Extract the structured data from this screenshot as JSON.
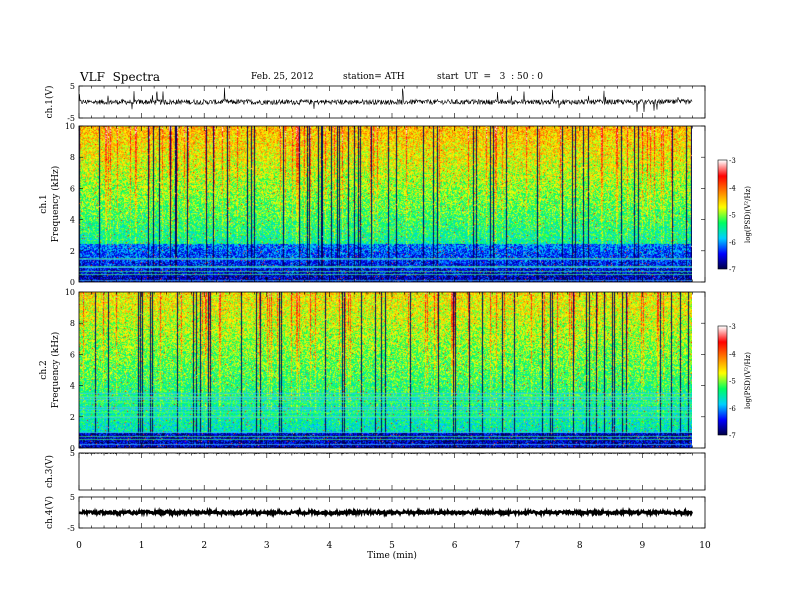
{
  "header": {
    "title": "VLF  Spectra",
    "date": "Feb. 25, 2012",
    "station": "station= ATH",
    "start": "start  UT  =   3  : 50 : 0"
  },
  "chart_data": [
    {
      "type": "line",
      "panel": "waveform-ch1",
      "ylabel": "ch.1(V)",
      "ylim": [
        -5,
        5
      ],
      "yticks": [
        "5",
        "-5"
      ],
      "x_range_min": [
        0,
        9.8
      ],
      "baseline": 0,
      "description_level": "noisy signal with impulsive spikes"
    },
    {
      "type": "heatmap",
      "panel": "spectrogram-ch1",
      "ylabel_lines": [
        "ch.1",
        "Frequency  (kHz)"
      ],
      "ylim": [
        0,
        10
      ],
      "yticks": [
        "0",
        "2",
        "4",
        "6",
        "8",
        "10"
      ],
      "x_range_min": [
        0,
        9.8
      ],
      "colorbar": {
        "label": "log(PSD)(V²/Hz)",
        "range": [
          -7,
          -3
        ],
        "ticks": [
          "-3",
          "-4",
          "-5",
          "-6",
          "-7"
        ],
        "colormap": [
          "#000040",
          "#0000ff",
          "#00d0ff",
          "#00ff60",
          "#ffff00",
          "#ff8000",
          "#ff0000",
          "#ffffff"
        ]
      }
    },
    {
      "type": "heatmap",
      "panel": "spectrogram-ch2",
      "ylabel_lines": [
        "ch.2",
        "Frequency  (kHz)"
      ],
      "ylim": [
        0,
        10
      ],
      "yticks": [
        "0",
        "2",
        "4",
        "6",
        "8",
        "10"
      ],
      "x_range_min": [
        0,
        9.8
      ],
      "colorbar": {
        "label": "log(PSD)(V²/Hz)",
        "range": [
          -7,
          -3
        ],
        "ticks": [
          "-3",
          "-4",
          "-5",
          "-6",
          "-7"
        ]
      }
    },
    {
      "type": "line",
      "panel": "waveform-ch3",
      "ylabel": "ch.3(V)",
      "ylim": [
        -5,
        5
      ],
      "yticks": [
        "5"
      ],
      "x_range_min": [
        0,
        9.8
      ],
      "baseline": 5
    },
    {
      "type": "line",
      "panel": "waveform-ch4",
      "ylabel": "ch.4(V)",
      "ylim": [
        -5,
        5
      ],
      "yticks": [
        "5",
        "-5"
      ],
      "x_range_min": [
        0,
        9.8
      ],
      "baseline": 0
    }
  ],
  "xaxis": {
    "label": "Time  (min)",
    "xlim": [
      0,
      10
    ],
    "ticks": [
      "0",
      "1",
      "2",
      "3",
      "4",
      "5",
      "6",
      "7",
      "8",
      "9",
      "10"
    ]
  }
}
